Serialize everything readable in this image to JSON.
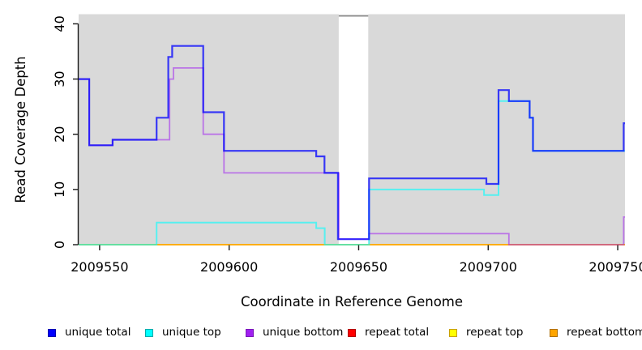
{
  "axes": {
    "ylabel": "Read Coverage Depth",
    "xlabel": "Coordinate in Reference Genome",
    "x_ticks": [
      2009550,
      2009600,
      2009650,
      2009700,
      2009750
    ],
    "y_ticks": [
      0,
      10,
      20,
      30,
      40
    ],
    "xlim": [
      2009541.9,
      2009752.8
    ],
    "ylim": [
      0,
      41.75
    ]
  },
  "chart_data": {
    "type": "line",
    "subtype": "step-coverage",
    "title": "",
    "xlabel": "Coordinate in Reference Genome",
    "ylabel": "Read Coverage Depth",
    "plot_bg": "#D9D9D9",
    "grid": "off",
    "legend_position": "bottom",
    "gap_region": {
      "x0": 2009642.3,
      "x1": 2009653.7,
      "fill": "#FFFFFF",
      "cap_value": 41.45,
      "cap_color": "#8C8C8C"
    },
    "series": [
      {
        "name": "repeat total",
        "key": "repeat_total",
        "color": "#FF0000",
        "width": 1.8,
        "opacity": 0.55,
        "steps": [
          [
            2009541.9,
            0
          ]
        ],
        "end": 2009752.8
      },
      {
        "name": "repeat top",
        "key": "repeat_top",
        "color": "#FFFF00",
        "width": 1.8,
        "opacity": 0.6,
        "steps": [
          [
            2009541.9,
            0
          ]
        ],
        "end": 2009752.8
      },
      {
        "name": "repeat bottom",
        "key": "repeat_bottom",
        "color": "#FFA500",
        "width": 1.8,
        "opacity": 0.75,
        "steps": [
          [
            2009541.9,
            0
          ]
        ],
        "end": 2009752.8
      },
      {
        "name": "unique bottom",
        "key": "unique_bottom",
        "color": "#A020F0",
        "width": 1.8,
        "opacity": 0.55,
        "steps": [
          [
            2009541.9,
            30
          ],
          [
            2009546,
            18
          ],
          [
            2009555,
            19
          ],
          [
            2009577,
            30
          ],
          [
            2009578.5,
            32
          ],
          [
            2009590,
            20
          ],
          [
            2009598,
            13
          ],
          [
            2009642.4,
            1
          ],
          [
            2009654,
            2
          ],
          [
            2009708,
            0
          ],
          [
            2009752.3,
            5
          ]
        ],
        "end": 2009752.8
      },
      {
        "name": "unique top",
        "key": "unique_top",
        "color": "#00FFFF",
        "width": 2,
        "opacity": 0.6,
        "steps": [
          [
            2009541.9,
            0
          ],
          [
            2009572,
            4
          ],
          [
            2009633.6,
            3
          ],
          [
            2009636.9,
            0
          ],
          [
            2009654,
            10
          ],
          [
            2009698.4,
            9
          ],
          [
            2009704,
            26
          ],
          [
            2009716,
            23
          ],
          [
            2009717.3,
            17
          ]
        ],
        "end": 2009752.8
      },
      {
        "name": "unique total",
        "key": "unique_total",
        "color": "#0000FF",
        "width": 2.2,
        "opacity": 0.75,
        "steps": [
          [
            2009541.9,
            30
          ],
          [
            2009546,
            18
          ],
          [
            2009555,
            19
          ],
          [
            2009572,
            23
          ],
          [
            2009576.5,
            34
          ],
          [
            2009578,
            36
          ],
          [
            2009590,
            24
          ],
          [
            2009598,
            17
          ],
          [
            2009633.6,
            16
          ],
          [
            2009636.8,
            13
          ],
          [
            2009642,
            1
          ],
          [
            2009654,
            12
          ],
          [
            2009699.3,
            11
          ],
          [
            2009704,
            28
          ],
          [
            2009708,
            26
          ],
          [
            2009716,
            23
          ],
          [
            2009717.3,
            17
          ],
          [
            2009752.3,
            22
          ]
        ],
        "end": 2009752.8
      }
    ]
  },
  "legend": {
    "items": [
      {
        "label": "unique total",
        "fill": "#0000FF",
        "border": "#0000B0"
      },
      {
        "label": "unique top",
        "fill": "#00FFFF",
        "border": "#00AAAA"
      },
      {
        "label": "unique bottom",
        "fill": "#A020F0",
        "border": "#7A18B8"
      },
      {
        "label": "repeat total",
        "fill": "#FF0000",
        "border": "#B00000"
      },
      {
        "label": "repeat top",
        "fill": "#FFFF00",
        "border": "#C8A000"
      },
      {
        "label": "repeat bottom",
        "fill": "#FFA500",
        "border": "#B07000"
      }
    ]
  }
}
